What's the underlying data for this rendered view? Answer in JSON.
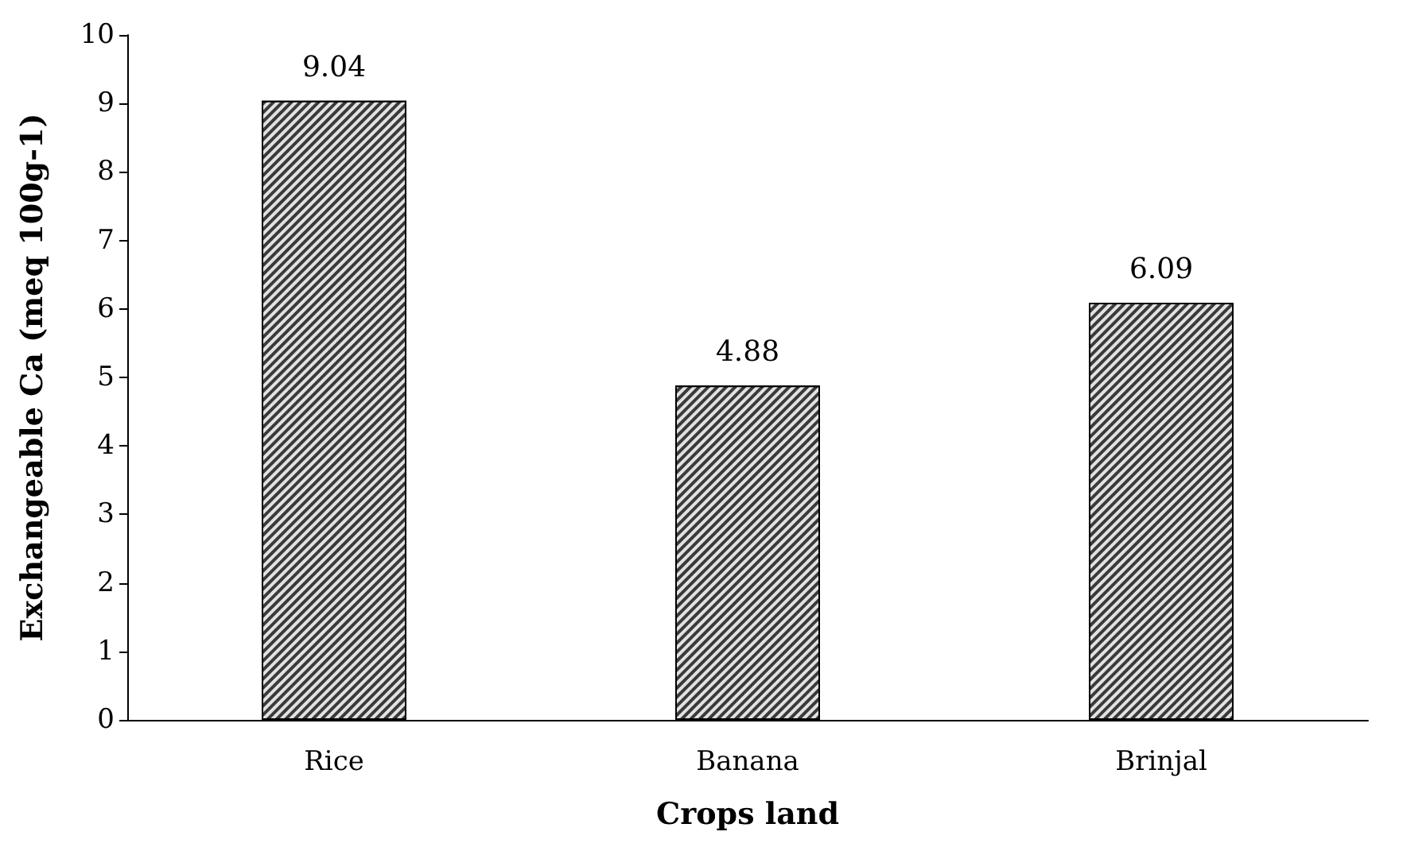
{
  "chart_data": {
    "type": "bar",
    "xlabel": "Crops land",
    "ylabel": "Exchangeable Ca (meq 100g-1)",
    "categories": [
      "Rice",
      "Banana",
      "Brinjal"
    ],
    "values": [
      9.04,
      4.88,
      6.09
    ],
    "color": "#3a3a3a",
    "ylim": [
      0,
      10
    ],
    "yticks": [
      0,
      1,
      2,
      3,
      4,
      5,
      6,
      7,
      8,
      9,
      10
    ],
    "data_labels": true,
    "grid": false
  }
}
